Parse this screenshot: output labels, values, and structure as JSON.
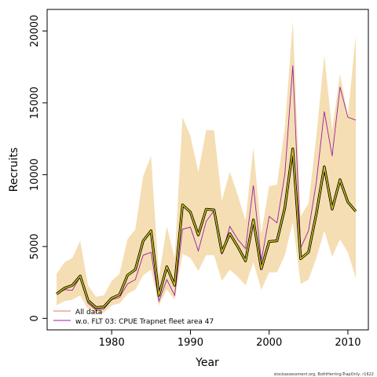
{
  "chart_data": {
    "type": "line",
    "xlabel": "Year",
    "ylabel": "Recruits",
    "xlim": [
      1971.8,
      2012.6
    ],
    "ylim": [
      -800,
      21500
    ],
    "xticks": [
      1980,
      1990,
      2000,
      2010
    ],
    "yticks": [
      0,
      5000,
      10000,
      15000,
      20000
    ],
    "grid": false,
    "legend_position": "bottom-left",
    "colors": {
      "band": "#f5deb3",
      "all_data": "#e8735a",
      "wo_flt03": "#9b1f9e",
      "highlight_outline": "#000000",
      "highlight_inner": "#d4ff00"
    },
    "x": [
      1973,
      1974,
      1975,
      1976,
      1977,
      1978,
      1979,
      1980,
      1981,
      1982,
      1983,
      1984,
      1985,
      1986,
      1987,
      1988,
      1989,
      1990,
      1991,
      1992,
      1993,
      1994,
      1995,
      1996,
      1997,
      1998,
      1999,
      2000,
      2001,
      2002,
      2003,
      2004,
      2005,
      2006,
      2007,
      2008,
      2009,
      2010,
      2011
    ],
    "series": [
      {
        "name": "All data",
        "values": [
          1700,
          2100,
          2300,
          2950,
          1250,
          750,
          800,
          1400,
          1650,
          3000,
          3400,
          5400,
          6100,
          1600,
          3600,
          2300,
          7900,
          7400,
          5800,
          7600,
          7550,
          4600,
          5900,
          5000,
          4000,
          6850,
          3450,
          5350,
          5400,
          7700,
          11800,
          4150,
          4600,
          7300,
          10550,
          7600,
          9650,
          8100,
          7450
        ]
      },
      {
        "name": "w.o. FLT 03: CPUE Trapnet fleet area 47",
        "values": [
          1700,
          2000,
          1950,
          2900,
          1050,
          600,
          650,
          1300,
          1450,
          2400,
          2700,
          4400,
          4600,
          1200,
          2700,
          1600,
          6200,
          6350,
          4700,
          6750,
          7500,
          4450,
          6400,
          5500,
          4850,
          9250,
          4000,
          7100,
          6650,
          10050,
          17600,
          4900,
          6100,
          9500,
          14400,
          11300,
          16100,
          14000,
          13800
        ]
      }
    ],
    "band": {
      "upper": [
        3100,
        3900,
        4200,
        5400,
        2300,
        1500,
        1600,
        2600,
        3100,
        5500,
        6200,
        9900,
        11300,
        2900,
        6400,
        4200,
        14000,
        12700,
        10200,
        13100,
        13100,
        8200,
        10200,
        8600,
        6800,
        11900,
        5900,
        9200,
        9300,
        13300,
        20700,
        7100,
        8000,
        12700,
        18300,
        13100,
        17000,
        14100,
        19700
      ],
      "lower": [
        900,
        1200,
        1300,
        1600,
        650,
        350,
        380,
        900,
        1050,
        1700,
        2000,
        3000,
        3400,
        900,
        2000,
        1300,
        4500,
        4200,
        3300,
        4400,
        4400,
        2600,
        3400,
        2900,
        2300,
        3900,
        2000,
        3200,
        3200,
        4400,
        6700,
        2400,
        2700,
        4200,
        6100,
        4300,
        5500,
        4600,
        2800
      ]
    },
    "footnote": "stockassessment.org, BothHerring-TrapOnly, r1622"
  }
}
